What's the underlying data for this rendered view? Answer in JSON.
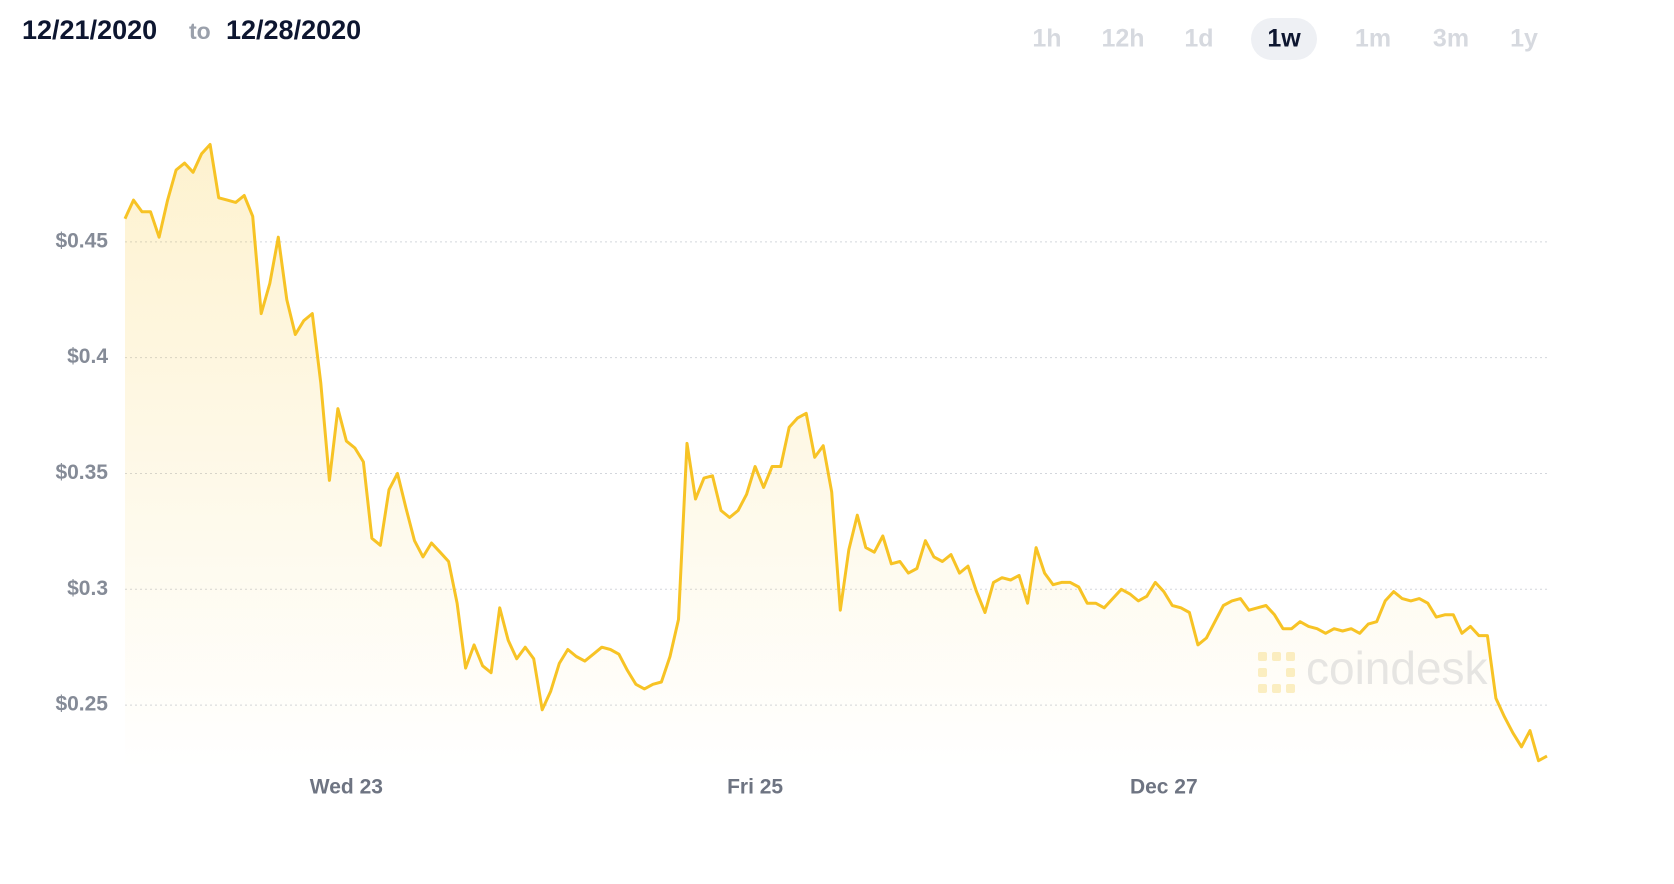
{
  "date_range": {
    "from": "12/21/2020",
    "separator": "to",
    "to": "12/28/2020"
  },
  "range_selector": {
    "options": [
      "1h",
      "12h",
      "1d",
      "1w",
      "1m",
      "3m",
      "1y"
    ],
    "active": "1w"
  },
  "watermark": "coindesk",
  "chart_data": {
    "type": "line",
    "categories": [
      null,
      null,
      null,
      null,
      null,
      null,
      null,
      null,
      null,
      null,
      null,
      null,
      null,
      null,
      null,
      null,
      null,
      null,
      null,
      null,
      null,
      null,
      null,
      null,
      null,
      null,
      "Wed 23",
      null,
      null,
      null,
      null,
      null,
      null,
      null,
      null,
      null,
      null,
      null,
      null,
      null,
      null,
      null,
      null,
      null,
      null,
      null,
      null,
      null,
      null,
      null,
      null,
      null,
      null,
      null,
      null,
      null,
      null,
      null,
      null,
      null,
      null,
      null,
      null,
      null,
      null,
      null,
      null,
      null,
      null,
      null,
      null,
      null,
      null,
      null,
      "Fri 25",
      null,
      null,
      null,
      null,
      null,
      null,
      null,
      null,
      null,
      null,
      null,
      null,
      null,
      null,
      null,
      null,
      null,
      null,
      null,
      null,
      null,
      null,
      null,
      null,
      null,
      null,
      null,
      null,
      null,
      null,
      null,
      null,
      null,
      null,
      null,
      null,
      null,
      null,
      null,
      null,
      null,
      null,
      null,
      null,
      null,
      null,
      null,
      "Dec 27",
      null,
      null,
      null,
      null,
      null,
      null,
      null,
      null,
      null,
      null,
      null,
      null,
      null,
      null,
      null,
      null,
      null,
      null,
      null,
      null,
      null,
      null,
      null,
      null,
      null,
      null,
      null,
      null,
      null,
      null,
      null,
      null,
      null,
      null,
      null,
      null,
      null,
      null,
      null,
      null,
      null,
      null,
      null,
      null,
      null
    ],
    "values": [
      0.46,
      0.468,
      0.463,
      0.463,
      0.452,
      0.468,
      0.481,
      0.484,
      0.48,
      0.488,
      0.492,
      0.469,
      0.468,
      0.467,
      0.47,
      0.461,
      0.419,
      0.432,
      0.452,
      0.425,
      0.41,
      0.416,
      0.419,
      0.389,
      0.347,
      0.378,
      0.364,
      0.361,
      0.355,
      0.322,
      0.319,
      0.343,
      0.35,
      0.335,
      0.321,
      0.314,
      0.32,
      0.316,
      0.312,
      0.294,
      0.266,
      0.276,
      0.267,
      0.264,
      0.292,
      0.278,
      0.27,
      0.275,
      0.27,
      0.248,
      0.256,
      0.268,
      0.274,
      0.271,
      0.269,
      0.272,
      0.275,
      0.274,
      0.272,
      0.265,
      0.259,
      0.257,
      0.259,
      0.26,
      0.271,
      0.287,
      0.363,
      0.339,
      0.348,
      0.349,
      0.334,
      0.331,
      0.334,
      0.341,
      0.353,
      0.344,
      0.353,
      0.353,
      0.37,
      0.374,
      0.376,
      0.357,
      0.362,
      0.342,
      0.291,
      0.317,
      0.332,
      0.318,
      0.316,
      0.323,
      0.311,
      0.312,
      0.307,
      0.309,
      0.321,
      0.314,
      0.312,
      0.315,
      0.307,
      0.31,
      0.299,
      0.29,
      0.303,
      0.305,
      0.304,
      0.306,
      0.294,
      0.318,
      0.307,
      0.302,
      0.303,
      0.303,
      0.301,
      0.294,
      0.294,
      0.292,
      0.296,
      0.3,
      0.298,
      0.295,
      0.297,
      0.303,
      0.299,
      0.293,
      0.292,
      0.29,
      0.276,
      0.279,
      0.286,
      0.293,
      0.295,
      0.296,
      0.291,
      0.292,
      0.293,
      0.289,
      0.283,
      0.283,
      0.286,
      0.284,
      0.283,
      0.281,
      0.283,
      0.282,
      0.283,
      0.281,
      0.285,
      0.286,
      0.295,
      0.299,
      0.296,
      0.295,
      0.296,
      0.294,
      0.288,
      0.289,
      0.289,
      0.281,
      0.284,
      0.28,
      0.28,
      0.253,
      0.245,
      0.238,
      0.232,
      0.239,
      0.226,
      0.228
    ],
    "color": "#f7c325",
    "ylim": [
      0.222,
      0.5
    ],
    "yticks": [
      {
        "value": 0.25,
        "label": "$0.25"
      },
      {
        "value": 0.3,
        "label": "$0.3"
      },
      {
        "value": 0.35,
        "label": "$0.35"
      },
      {
        "value": 0.4,
        "label": "$0.4"
      },
      {
        "value": 0.45,
        "label": "$0.45"
      }
    ],
    "grid": true
  }
}
